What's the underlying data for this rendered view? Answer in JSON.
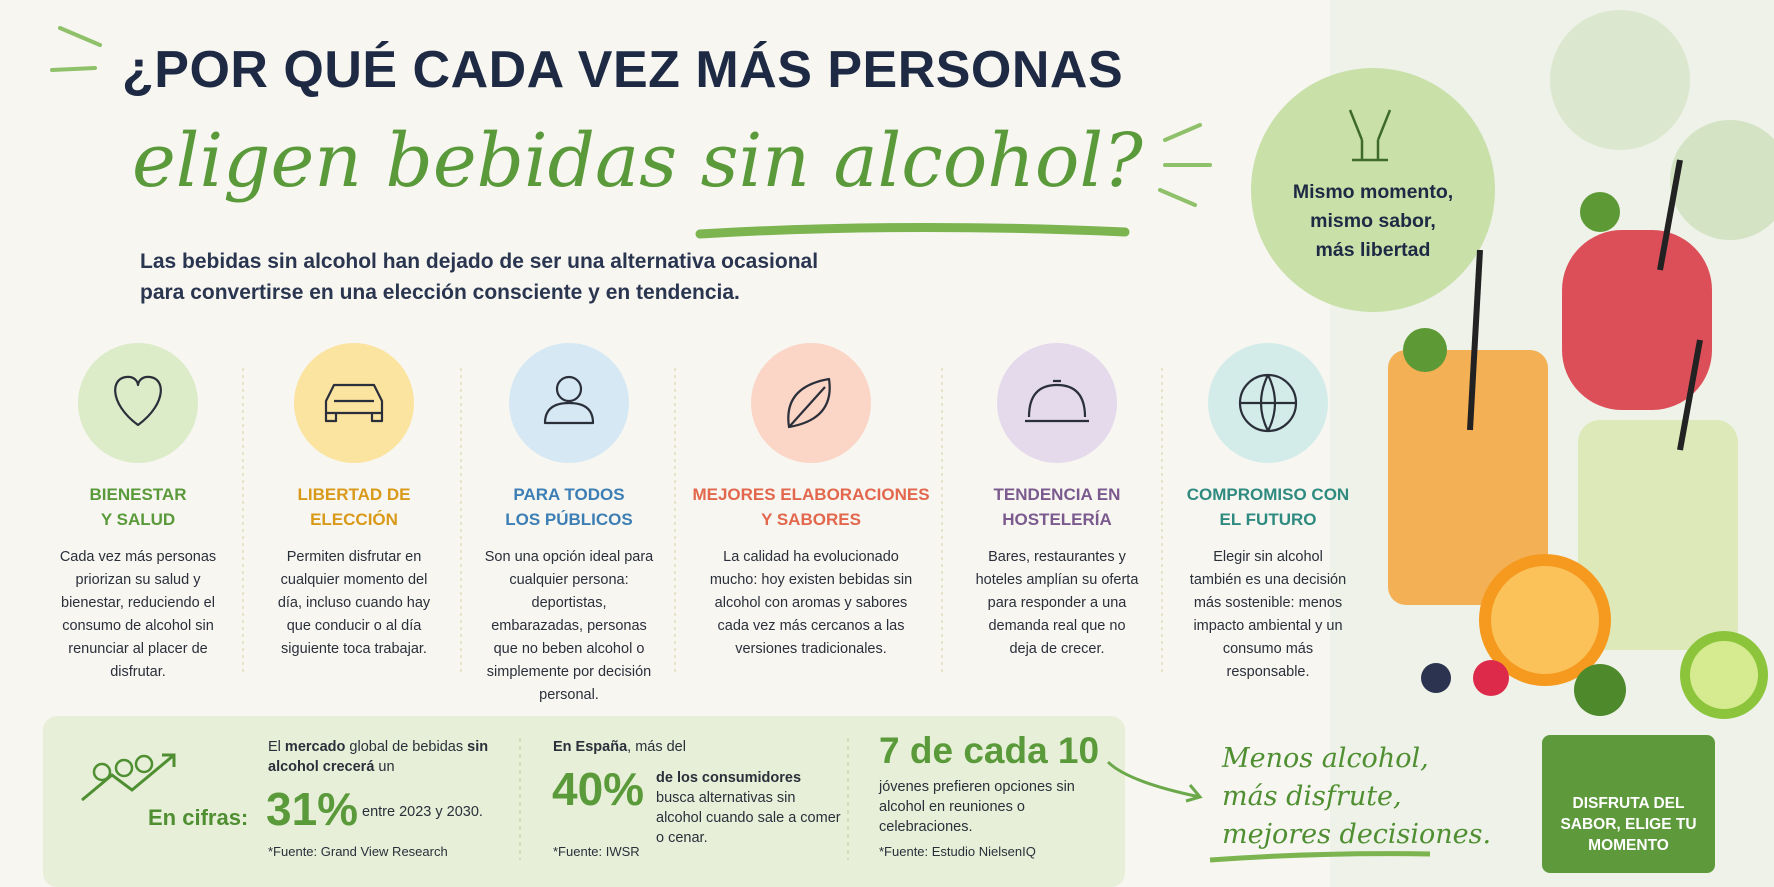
{
  "header": {
    "title": "¿POR QUÉ CADA VEZ MÁS PERSONAS",
    "script_title": "eligen bebidas sin alcohol?",
    "subtitle": [
      "Las bebidas sin alcohol han dejado de ser una alternativa ocasional",
      "para convertirse en una elección consciente y en tendencia."
    ]
  },
  "badge": [
    "Mismo momento,",
    "mismo sabor,",
    "más libertad"
  ],
  "cards": [
    {
      "title": [
        "BIENESTAR",
        "Y SALUD"
      ],
      "text": "Cada vez más personas priorizan su salud y bienestar, reduciendo el consumo de alcohol sin renunciar al placer de disfrutar."
    },
    {
      "title": [
        "LIBERTAD DE",
        "ELECCIÓN"
      ],
      "text": "Permiten disfrutar en cualquier momento del día, incluso cuando hay que conducir o al día siguiente toca trabajar."
    },
    {
      "title": [
        "PARA TODOS",
        "LOS PÚBLICOS"
      ],
      "text": "Son una opción ideal para cualquier persona: deportistas, embarazadas, personas que no beben alcohol o simplemente por decisión personal."
    },
    {
      "title": [
        "MEJORES ELABORACIONES",
        "Y SABORES"
      ],
      "text": "La calidad ha evolucionado mucho: hoy existen bebidas sin alcohol con aromas y sabores cada vez más cercanos a las versiones tradicionales."
    },
    {
      "title": [
        "TENDENCIA EN",
        "HOSTELERÍA"
      ],
      "text": "Bares, restaurantes y hoteles amplían su oferta para responder a una demanda real que no deja de crecer."
    },
    {
      "title": [
        "COMPROMISO CON",
        "EL FUTURO"
      ],
      "text": "Elegir sin alcohol también es una decisión más sostenible: menos impacto ambiental y un consumo más responsable."
    }
  ],
  "figures": {
    "label": "En cifras:",
    "stats": [
      {
        "intro": [
          "El ",
          "mercado",
          " global de bebidas ",
          "sin alcohol crecerá",
          " un"
        ],
        "value": "31%",
        "detail": "entre 2023 y 2030.",
        "source": "*Fuente: Grand View Research"
      },
      {
        "intro": [
          "En España",
          ", más del"
        ],
        "value": "40%",
        "detail_bold": "de los consumidores",
        "detail": "busca alternativas sin alcohol cuando sale a comer o cenar.",
        "source": "*Fuente: IWSR"
      },
      {
        "value": "7 de cada 10",
        "detail": "jóvenes prefieren opciones sin alcohol en reuniones o celebraciones.",
        "source": "*Fuente: Estudio NielsenIQ"
      }
    ]
  },
  "slogan": [
    "Menos alcohol,",
    "más disfrute,",
    "mejores decisiones."
  ],
  "button": "DISFRUTA DEL SABOR, ELIGE TU MOMENTO"
}
